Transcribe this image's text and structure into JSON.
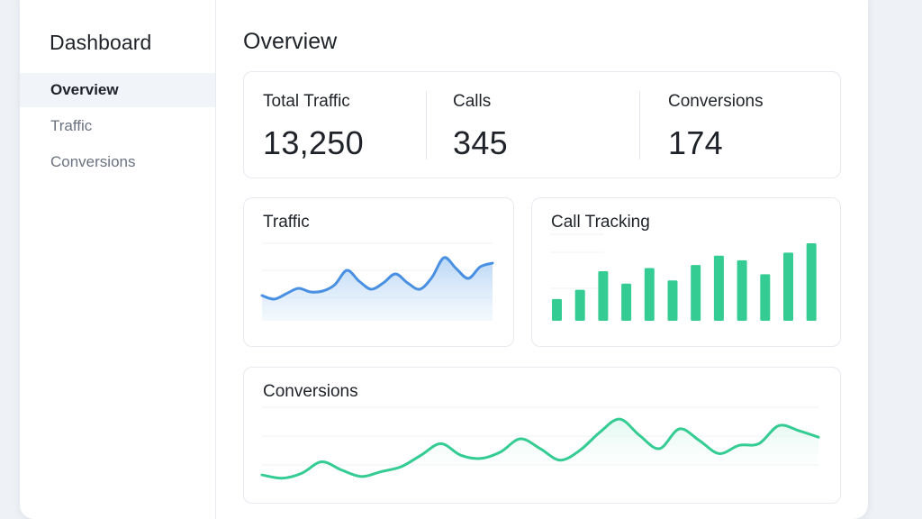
{
  "sidebar": {
    "title": "Dashboard",
    "items": [
      {
        "label": "Overview",
        "active": true
      },
      {
        "label": "Traffic",
        "active": false
      },
      {
        "label": "Conversions",
        "active": false
      }
    ]
  },
  "main": {
    "title": "Overview",
    "stats": [
      {
        "label": "Total Traffic",
        "value": "13,250"
      },
      {
        "label": "Calls",
        "value": "345"
      },
      {
        "label": "Conversions",
        "value": "174"
      }
    ],
    "traffic_card": {
      "title": "Traffic"
    },
    "calls_card": {
      "title": "Call Tracking"
    },
    "conversions_card": {
      "title": "Conversions"
    }
  },
  "colors": {
    "blue_line": "#4a90e2",
    "green": "#34cc93",
    "background": "#eef1f5"
  },
  "chart_data": [
    {
      "type": "area",
      "values": [
        28,
        24,
        30,
        36,
        32,
        33,
        40,
        56,
        44,
        35,
        42,
        52,
        42,
        35,
        48,
        70,
        58,
        47,
        60,
        64
      ]
    },
    {
      "type": "bar",
      "values": [
        28,
        40,
        64,
        48,
        68,
        52,
        72,
        84,
        78,
        60,
        88,
        100
      ]
    },
    {
      "type": "line",
      "values": [
        12,
        8,
        14,
        28,
        18,
        10,
        16,
        22,
        36,
        50,
        36,
        32,
        40,
        56,
        44,
        30,
        42,
        64,
        80,
        60,
        44,
        68,
        54,
        38,
        48,
        50,
        72,
        66,
        58
      ]
    }
  ]
}
